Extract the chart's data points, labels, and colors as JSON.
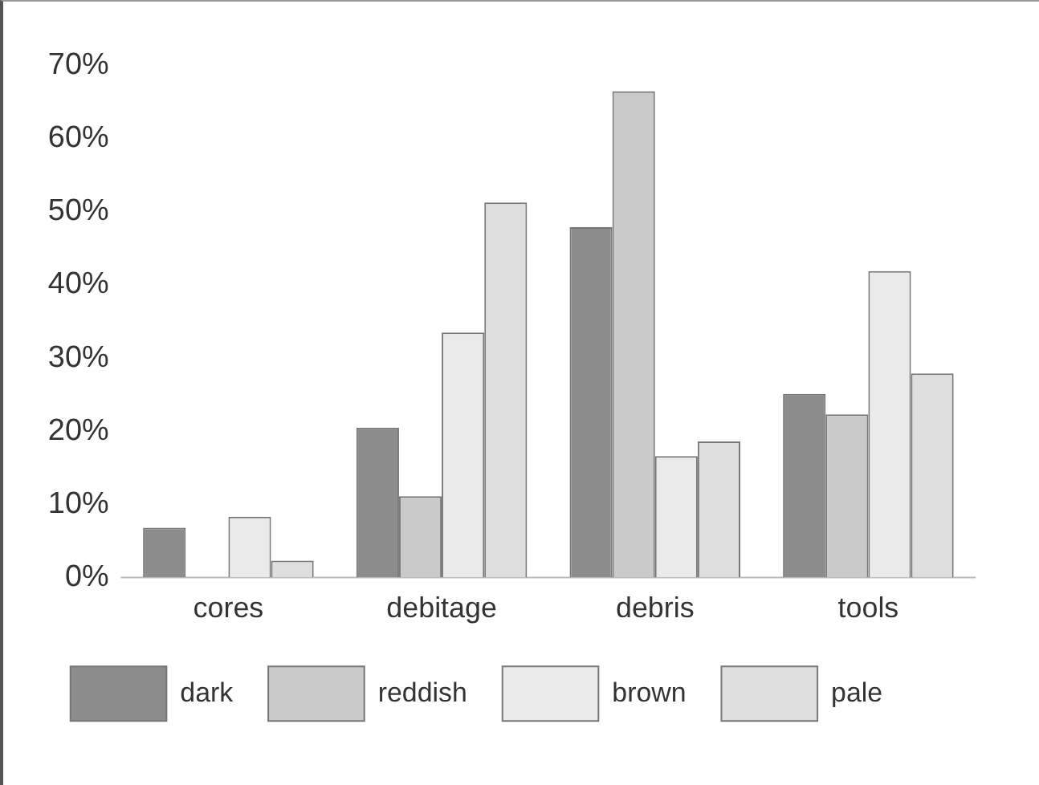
{
  "chart_data": {
    "type": "bar",
    "categories": [
      "cores",
      "debitage",
      "debris",
      "tools"
    ],
    "series": [
      {
        "name": "dark",
        "color": "#8c8c8c",
        "values": [
          6.8,
          20.5,
          47.9,
          25.1
        ]
      },
      {
        "name": "reddish",
        "color": "#cacaca",
        "values": [
          0,
          11.1,
          66.5,
          22.3
        ]
      },
      {
        "name": "brown",
        "color": "#eaeaea",
        "values": [
          8.3,
          33.5,
          16.6,
          41.9
        ]
      },
      {
        "name": "pale",
        "color": "#dedede",
        "values": [
          2.3,
          51.3,
          18.6,
          27.9
        ]
      }
    ],
    "ylim": [
      0,
      70
    ],
    "yticks": [
      {
        "value": 0,
        "label": "0%"
      },
      {
        "value": 10,
        "label": "10%"
      },
      {
        "value": 20,
        "label": "20%"
      },
      {
        "value": 30,
        "label": "30%"
      },
      {
        "value": 40,
        "label": "40%"
      },
      {
        "value": 50,
        "label": "50%"
      },
      {
        "value": 60,
        "label": "60%"
      },
      {
        "value": 70,
        "label": "70%"
      }
    ],
    "grid": false,
    "legend": "bottom"
  }
}
